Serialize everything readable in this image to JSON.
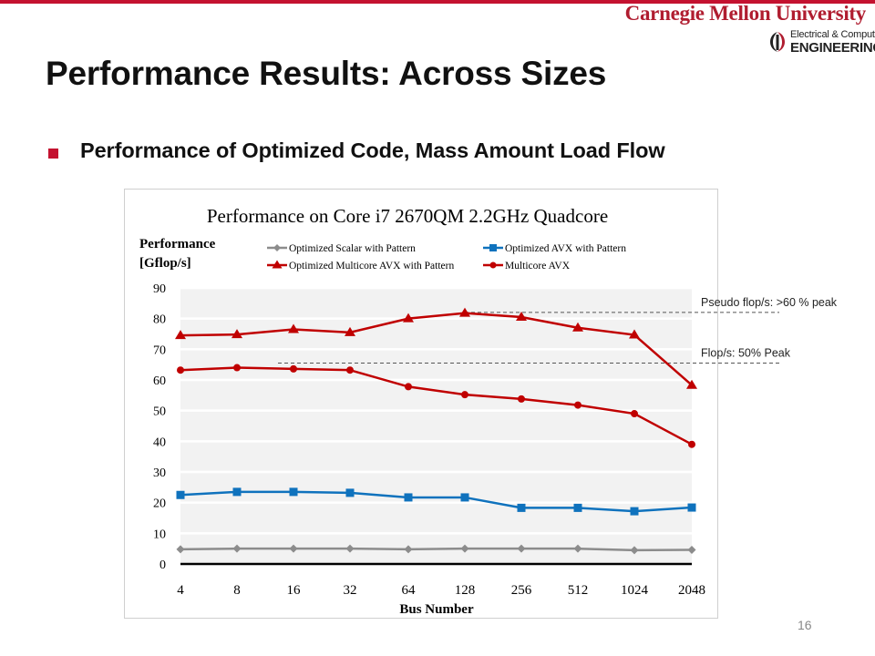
{
  "header": {
    "university": "Carnegie Mellon University",
    "dept_line1": "Electrical & Computer",
    "dept_line2": "ENGINEERING"
  },
  "slide": {
    "title": "Performance Results: Across Sizes",
    "bullet": "Performance of Optimized Code, Mass Amount Load Flow",
    "page_number": "16"
  },
  "colors": {
    "brand_red": "#c41230",
    "scalar": "#8c8c8c",
    "avx": "#0f72bd",
    "multicore_avx_pattern": "#c00000",
    "multicore_avx": "#c00000"
  },
  "chart_data": {
    "type": "line",
    "title": "Performance on Core i7 2670QM 2.2GHz Quadcore",
    "ylabel": "Performance [Gflop/s]",
    "ylabel_lines": [
      "Performance",
      "[Gflop/s]"
    ],
    "xlabel": "Bus Number",
    "categories": [
      "4",
      "8",
      "16",
      "32",
      "64",
      "128",
      "256",
      "512",
      "1024",
      "2048"
    ],
    "ylim": [
      0,
      90
    ],
    "yticks": [
      0,
      10,
      20,
      30,
      40,
      50,
      60,
      70,
      80,
      90
    ],
    "grid": true,
    "legend_position": "top",
    "series": [
      {
        "name": "Optimized Scalar with Pattern",
        "marker": "diamond",
        "color": "#8c8c8c",
        "values": [
          4.8,
          5.0,
          5.0,
          5.0,
          4.8,
          5.0,
          5.0,
          5.0,
          4.5,
          4.6
        ]
      },
      {
        "name": "Optimized AVX with Pattern",
        "marker": "square",
        "color": "#0f72bd",
        "values": [
          22.5,
          23.5,
          23.5,
          23.2,
          21.7,
          21.7,
          18.3,
          18.3,
          17.2,
          18.4
        ]
      },
      {
        "name": "Optimized Multicore AVX with Pattern",
        "marker": "triangle",
        "color": "#c00000",
        "values": [
          74.5,
          74.8,
          76.5,
          75.5,
          80.0,
          81.8,
          80.5,
          77.0,
          74.7,
          58.3
        ]
      },
      {
        "name": "Multicore AVX",
        "marker": "circle",
        "color": "#c00000",
        "values": [
          63.2,
          64.0,
          63.6,
          63.2,
          57.8,
          55.2,
          53.8,
          51.8,
          49.0,
          39.0
        ]
      }
    ],
    "annotations": [
      {
        "text": "Pseudo flop/s: >60 % peak",
        "y": 82
      },
      {
        "text": "Flop/s: 50% Peak",
        "y": 65.5
      }
    ]
  }
}
